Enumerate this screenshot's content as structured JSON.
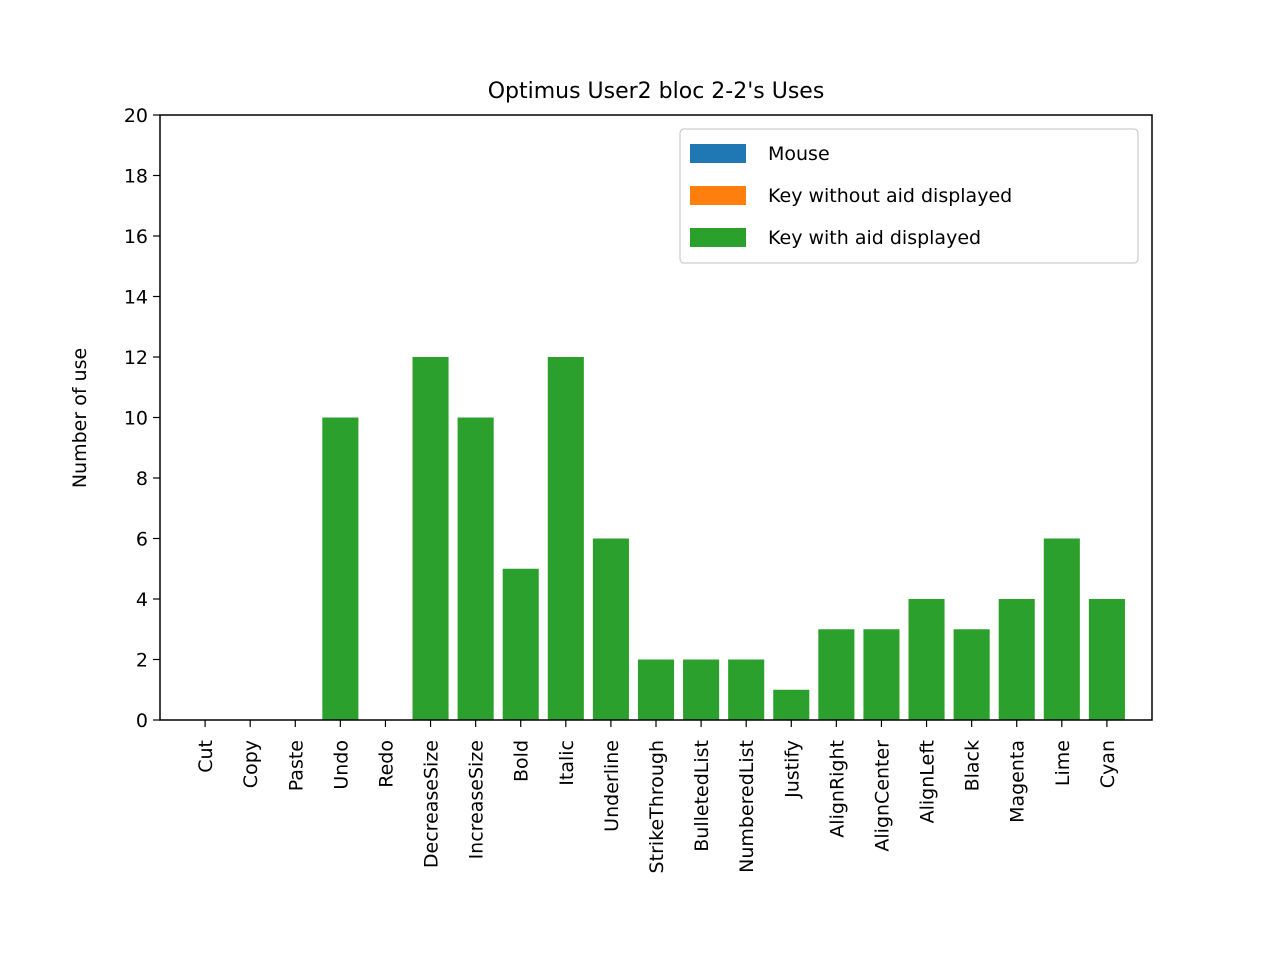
{
  "chart_data": {
    "type": "bar",
    "title": "Optimus User2 bloc 2-2's Uses",
    "xlabel": "",
    "ylabel": "Number of use",
    "ylim": [
      0,
      20
    ],
    "yticks": [
      0,
      2,
      4,
      6,
      8,
      10,
      12,
      14,
      16,
      18,
      20
    ],
    "categories": [
      "Cut",
      "Copy",
      "Paste",
      "Undo",
      "Redo",
      "DecreaseSize",
      "IncreaseSize",
      "Bold",
      "Italic",
      "Underline",
      "StrikeThrough",
      "BulletedList",
      "NumberedList",
      "Justify",
      "AlignRight",
      "AlignCenter",
      "AlignLeft",
      "Black",
      "Magenta",
      "Lime",
      "Cyan"
    ],
    "stacked": true,
    "series": [
      {
        "name": "Mouse",
        "color": "#1f77b4",
        "values": [
          0,
          0,
          0,
          0,
          0,
          0,
          0,
          0,
          0,
          0,
          0,
          0,
          0,
          0,
          0,
          0,
          0,
          0,
          0,
          0,
          0
        ]
      },
      {
        "name": "Key without aid displayed",
        "color": "#ff7f0e",
        "values": [
          0,
          0,
          0,
          0,
          0,
          0,
          0,
          0,
          0,
          0,
          0,
          0,
          0,
          0,
          0,
          0,
          0,
          0,
          0,
          0,
          0
        ]
      },
      {
        "name": "Key with aid displayed",
        "color": "#2ca02c",
        "values": [
          0,
          0,
          0,
          10,
          0,
          12,
          10,
          5,
          12,
          6,
          2,
          2,
          2,
          1,
          3,
          3,
          4,
          3,
          4,
          6,
          4
        ]
      }
    ],
    "legend_position": "top-right",
    "grid": false
  }
}
